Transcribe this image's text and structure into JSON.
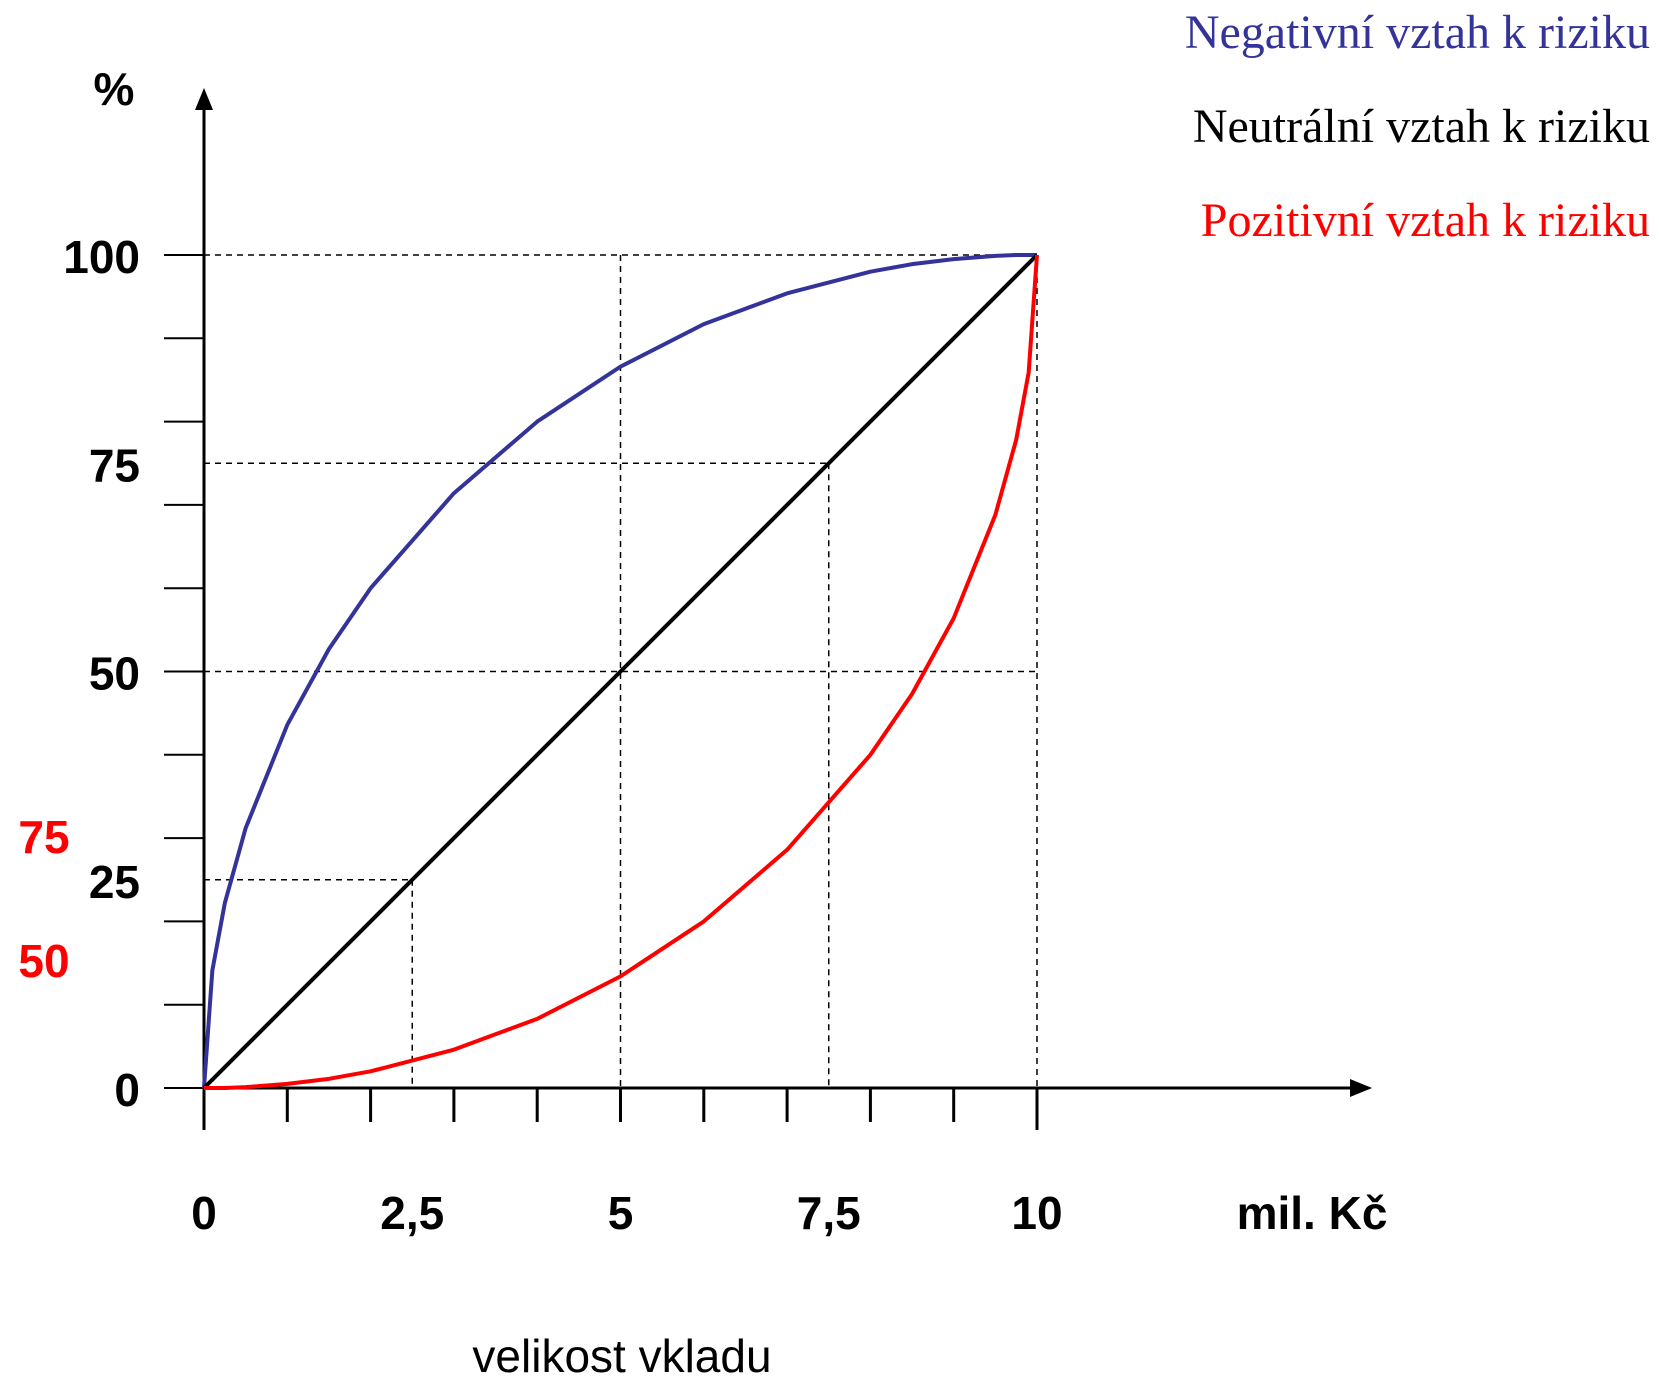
{
  "chart_data": {
    "type": "line",
    "y_axis_label": "%",
    "x_axis_label": "mil. Kč",
    "x_axis_title": "velikost vkladu",
    "xlim": [
      0,
      10
    ],
    "ylim": [
      0,
      100
    ],
    "xticks": [
      0,
      {
        "value": 2.5,
        "label": "2,5"
      },
      5,
      {
        "value": 7.5,
        "label": "7,5"
      },
      10
    ],
    "yticks": [
      0,
      25,
      50,
      75,
      100
    ],
    "x_minor_ticks": [
      0,
      1,
      2,
      3,
      4,
      5,
      6,
      7,
      8,
      9,
      10
    ],
    "y_minor_ticks": [
      0,
      10,
      20,
      30,
      40,
      50,
      60,
      70,
      80,
      90,
      100
    ],
    "x": [
      0,
      0.1,
      0.25,
      0.5,
      1,
      1.5,
      2,
      3,
      4,
      5,
      6,
      7,
      8,
      8.5,
      9,
      9.5,
      9.75,
      9.9,
      10
    ],
    "series": [
      {
        "name": "Negativní vztah k riziku",
        "color": "#333399",
        "values": [
          0,
          14.1,
          22.2,
          31.2,
          43.6,
          52.7,
          60,
          71.4,
          80,
          86.6,
          91.7,
          95.4,
          98,
          98.9,
          99.5,
          99.9,
          100,
          100,
          100
        ]
      },
      {
        "name": "Neutrální vztah k riziku",
        "color": "#000000",
        "values": [
          0,
          1,
          2.5,
          5,
          10,
          15,
          20,
          30,
          40,
          50,
          60,
          70,
          80,
          85,
          90,
          95,
          97.5,
          99,
          100
        ]
      },
      {
        "name": "Pozitivní vztah k riziku",
        "color": "#ff0000",
        "values": [
          0,
          0,
          0,
          0.1,
          0.5,
          1.1,
          2,
          4.6,
          8.3,
          13.4,
          20,
          28.6,
          40,
          47.3,
          56.4,
          68.8,
          77.8,
          85.9,
          100
        ]
      }
    ],
    "guides": [
      {
        "x": [
          0,
          10
        ],
        "y": [
          100,
          100
        ]
      },
      {
        "x": [
          5,
          5
        ],
        "y": [
          100,
          0
        ]
      },
      {
        "x": [
          10,
          10
        ],
        "y": [
          100,
          0
        ]
      },
      {
        "x": [
          0,
          7.5
        ],
        "y": [
          75,
          75
        ]
      },
      {
        "x": [
          7.5,
          7.5
        ],
        "y": [
          75,
          0
        ]
      },
      {
        "x": [
          0,
          10
        ],
        "y": [
          50,
          50
        ]
      },
      {
        "x": [
          0,
          2.5
        ],
        "y": [
          25,
          25
        ]
      },
      {
        "x": [
          2.5,
          2.5
        ],
        "y": [
          25,
          0
        ]
      }
    ],
    "annotations": [
      75,
      50
    ],
    "annotation_color": "#ff0000"
  }
}
